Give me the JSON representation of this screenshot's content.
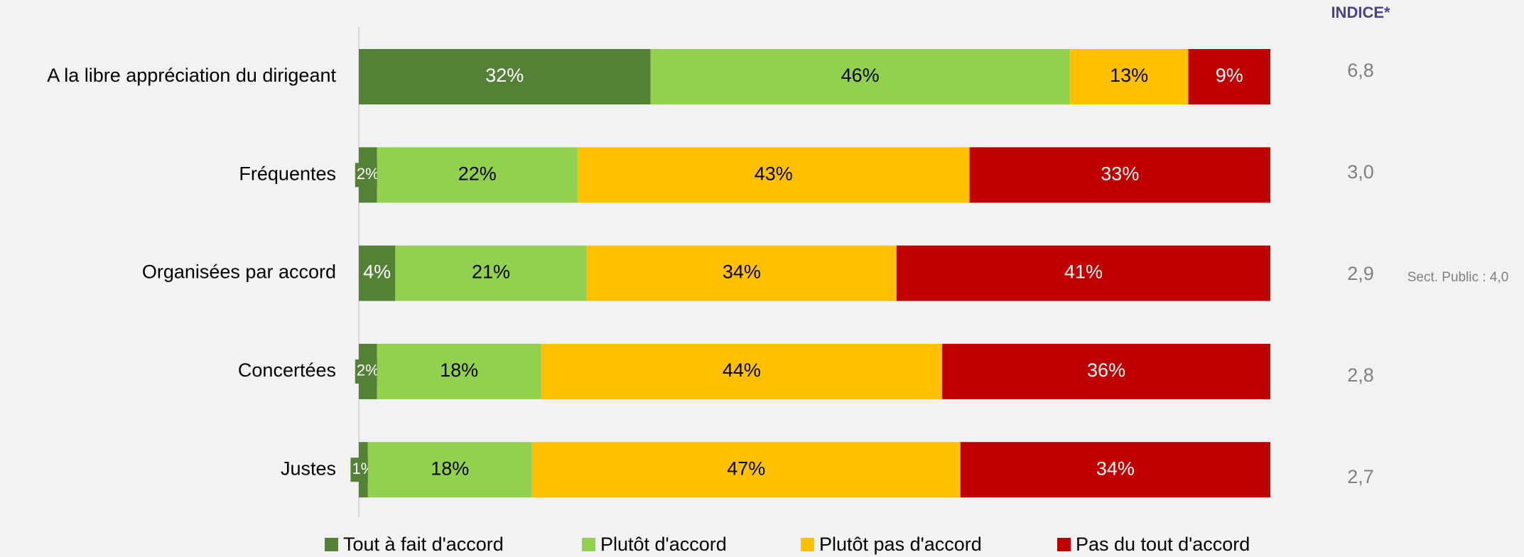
{
  "chart_data": {
    "type": "stacked_bar_horizontal",
    "categories": [
      "A la libre appréciation du dirigeant",
      "Fréquentes",
      "Organisées par accord",
      "Concertées",
      "Justes"
    ],
    "xlim": [
      0,
      100
    ],
    "series": [
      {
        "name": "Tout à fait d'accord",
        "color": "#538135",
        "label_color": "#ffffff",
        "values": [
          32,
          2,
          4,
          2,
          1
        ],
        "value_labels": [
          "32%",
          "2%",
          "4%",
          "2%",
          "1%"
        ]
      },
      {
        "name": "Plutôt d'accord",
        "color": "#92d050",
        "label_color": "#000000",
        "values": [
          46,
          22,
          21,
          18,
          18
        ],
        "value_labels": [
          "46%",
          "22%",
          "21%",
          "18%",
          "18%"
        ]
      },
      {
        "name": "Plutôt pas d'accord",
        "color": "#ffc000",
        "label_color": "#000000",
        "values": [
          13,
          43,
          34,
          44,
          47
        ],
        "value_labels": [
          "13%",
          "43%",
          "34%",
          "44%",
          "47%"
        ]
      },
      {
        "name": "Pas du tout d'accord",
        "color": "#c00000",
        "label_color": "#ffffff",
        "values": [
          9,
          33,
          41,
          36,
          34
        ],
        "value_labels": [
          "9%",
          "33%",
          "41%",
          "36%",
          "34%"
        ]
      }
    ],
    "index_title": "INDICE*",
    "index": [
      "6,8",
      "3,0",
      "2,9",
      "2,8",
      "2,7"
    ],
    "annotation": "Sect. Public : 4,0"
  }
}
